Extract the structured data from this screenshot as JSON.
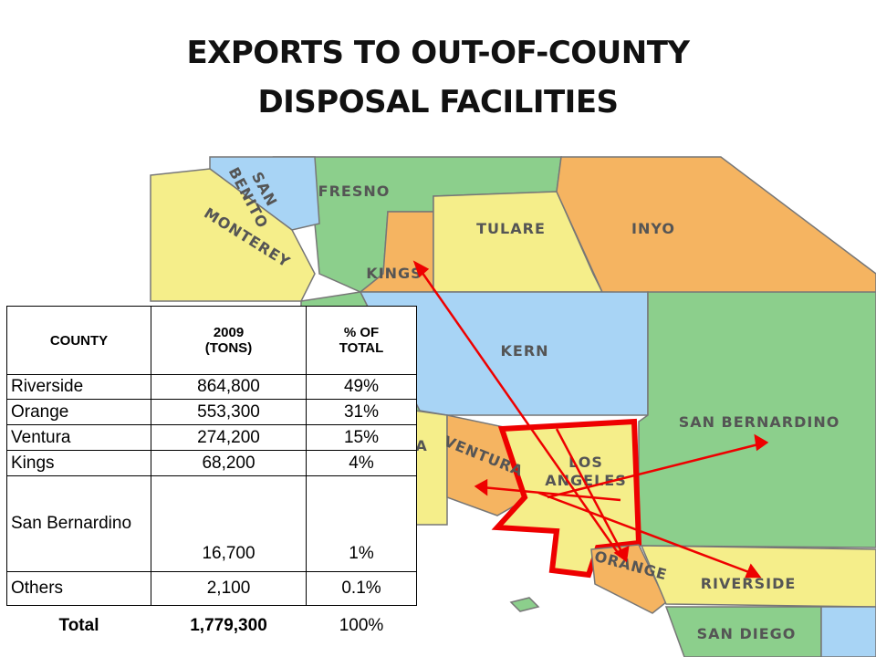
{
  "title": [
    "EXPORTS TO OUT-OF-COUNTY",
    "DISPOSAL FACILITIES"
  ],
  "map": {
    "labels": [
      "SAN BENITO",
      "FRESNO",
      "MONTEREY",
      "KINGS",
      "TULARE",
      "INYO",
      "KERN",
      "SAN BERNARDINO",
      "A",
      "VENTURA",
      "LOS ANGELES",
      "ORANGE",
      "RIVERSIDE",
      "SAN DIEGO"
    ]
  },
  "table": {
    "header": [
      [
        "COUNTY"
      ],
      [
        "2009",
        "(TONS)"
      ],
      [
        "% OF",
        "TOTAL"
      ]
    ],
    "rows": [
      [
        "Riverside",
        "864,800",
        "49%"
      ],
      [
        "Orange",
        "553,300",
        "31%"
      ],
      [
        "Ventura",
        "274,200",
        "15%"
      ],
      [
        "Kings",
        "68,200",
        "4%"
      ],
      [
        "San Bernardino",
        "16,700",
        "1%"
      ],
      [
        "Others",
        "2,100",
        "0.1%"
      ]
    ],
    "total": [
      "Total",
      "1,779,300",
      "100%"
    ]
  }
}
